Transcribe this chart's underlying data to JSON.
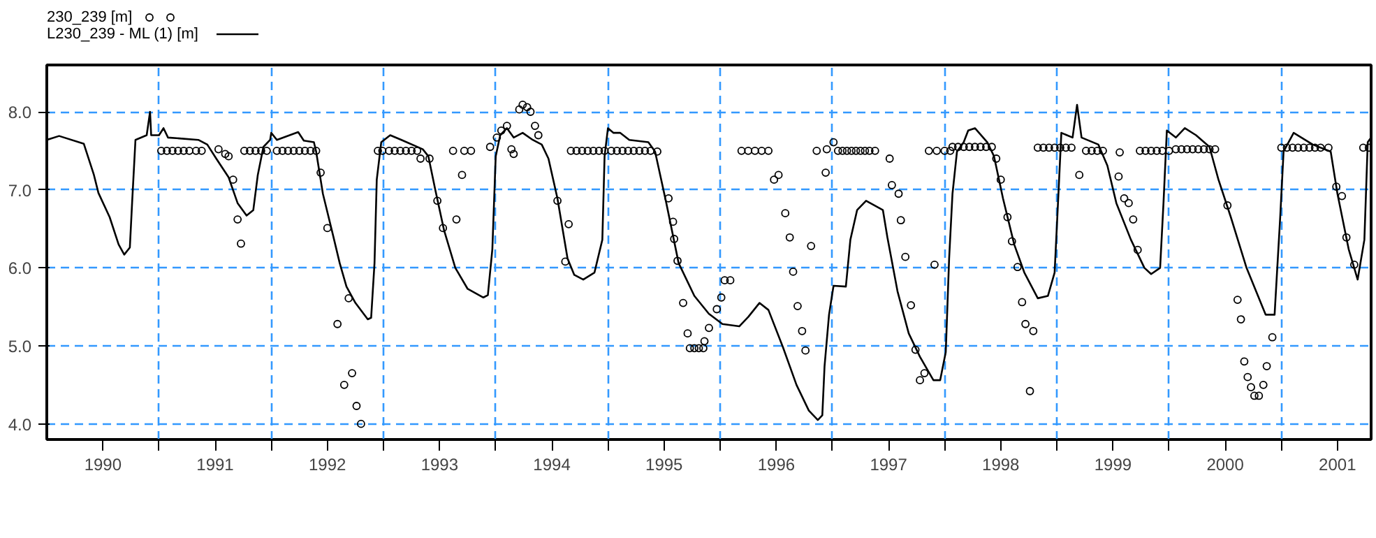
{
  "chart_data": {
    "type": "line",
    "xlim": [
      1990,
      2001.8
    ],
    "ylim": [
      3.8,
      8.6
    ],
    "xticks": [
      {
        "value": 1991,
        "label": null
      },
      {
        "value": 1992,
        "label": null
      },
      {
        "value": 1993,
        "label": null
      },
      {
        "value": 1994,
        "label": null
      },
      {
        "value": 1995,
        "label": null
      },
      {
        "value": 1996,
        "label": null
      },
      {
        "value": 1997,
        "label": null
      },
      {
        "value": 1998,
        "label": null
      },
      {
        "value": 1999,
        "label": null
      },
      {
        "value": 2000,
        "label": null
      },
      {
        "value": 2001,
        "label": null
      },
      {
        "value": 1990.5,
        "label": "1990"
      },
      {
        "value": 1991.5,
        "label": "1991"
      },
      {
        "value": 1992.5,
        "label": "1992"
      },
      {
        "value": 1993.5,
        "label": "1993"
      },
      {
        "value": 1994.5,
        "label": "1994"
      },
      {
        "value": 1995.5,
        "label": "1995"
      },
      {
        "value": 1996.5,
        "label": "1996"
      },
      {
        "value": 1997.5,
        "label": "1997"
      },
      {
        "value": 1998.5,
        "label": "1998"
      },
      {
        "value": 1999.5,
        "label": "1999"
      },
      {
        "value": 2000.5,
        "label": "2000"
      },
      {
        "value": 2001.5,
        "label": "2001"
      }
    ],
    "yticks": [
      {
        "value": 4,
        "label": "4.0"
      },
      {
        "value": 5,
        "label": "5.0"
      },
      {
        "value": 6,
        "label": "6.0"
      },
      {
        "value": 7,
        "label": "7.0"
      },
      {
        "value": 8,
        "label": "8.0"
      }
    ],
    "grid": true,
    "legend": "top left",
    "series": [
      {
        "name": "230_239 [m]",
        "type": "scatter",
        "marker": "circle",
        "color": "#000000",
        "x": [
          1991.02,
          1991.07,
          1991.12,
          1991.17,
          1991.22,
          1991.27,
          1991.33,
          1991.38,
          1991.53,
          1991.59,
          1991.62,
          1991.66,
          1991.7,
          1991.73,
          1991.76,
          1991.81,
          1991.86,
          1991.91,
          1991.96,
          1992.05,
          1992.1,
          1992.15,
          1992.2,
          1992.25,
          1992.3,
          1992.35,
          1992.4,
          1992.44,
          1992.5,
          1992.59,
          1992.65,
          1992.69,
          1992.72,
          1992.76,
          1992.8,
          1992.95,
          1992.99,
          1993.05,
          1993.1,
          1993.15,
          1993.2,
          1993.25,
          1993.3,
          1993.33,
          1993.41,
          1993.48,
          1993.53,
          1993.62,
          1993.65,
          1993.7,
          1993.72,
          1993.78,
          1993.95,
          1994.01,
          1994.05,
          1994.1,
          1994.14,
          1994.16,
          1994.21,
          1994.24,
          1994.28,
          1994.31,
          1994.35,
          1994.38,
          1994.55,
          1994.62,
          1994.65,
          1994.67,
          1994.72,
          1994.77,
          1994.82,
          1994.87,
          1994.92,
          1994.97,
          1995.03,
          1995.08,
          1995.13,
          1995.18,
          1995.23,
          1995.28,
          1995.33,
          1995.38,
          1995.44,
          1995.54,
          1995.58,
          1995.59,
          1995.62,
          1995.67,
          1995.71,
          1995.73,
          1995.77,
          1995.81,
          1995.85,
          1995.86,
          1995.9,
          1995.97,
          1996.01,
          1996.04,
          1996.09,
          1996.19,
          1996.25,
          1996.31,
          1996.37,
          1996.43,
          1996.48,
          1996.52,
          1996.58,
          1996.62,
          1996.65,
          1996.69,
          1996.73,
          1996.76,
          1996.81,
          1996.86,
          1996.94,
          1996.95,
          1997.01,
          1997.05,
          1997.09,
          1997.13,
          1997.17,
          1997.21,
          1997.25,
          1997.29,
          1997.33,
          1997.38,
          1997.51,
          1997.53,
          1997.59,
          1997.61,
          1997.65,
          1997.7,
          1997.74,
          1997.78,
          1997.82,
          1997.86,
          1997.91,
          1997.93,
          1998.0,
          1998.05,
          1998.07,
          1998.12,
          1998.17,
          1998.22,
          1998.27,
          1998.32,
          1998.37,
          1998.42,
          1998.46,
          1998.5,
          1998.56,
          1998.6,
          1998.65,
          1998.69,
          1998.72,
          1998.76,
          1998.79,
          1998.83,
          1998.88,
          1998.93,
          1998.98,
          1999.03,
          1999.08,
          1999.13,
          1999.2,
          1999.26,
          1999.31,
          1999.36,
          1999.41,
          1999.55,
          1999.56,
          1999.6,
          1999.64,
          1999.68,
          1999.72,
          1999.74,
          1999.79,
          1999.84,
          1999.89,
          1999.94,
          2000.0,
          2000.06,
          2000.11,
          2000.16,
          2000.21,
          2000.26,
          2000.31,
          2000.36,
          2000.41,
          2000.52,
          2000.61,
          2000.64,
          2000.67,
          2000.7,
          2000.73,
          2000.76,
          2000.8,
          2000.84,
          2000.87,
          2000.92,
          2001.0,
          2001.05,
          2001.1,
          2001.15,
          2001.2,
          2001.25,
          2001.3,
          2001.35,
          2001.42,
          2001.49,
          2001.54,
          2001.58,
          2001.65,
          2001.73,
          2001.78
        ],
        "values": [
          7.5,
          7.5,
          7.5,
          7.5,
          7.5,
          7.5,
          7.5,
          7.5,
          7.52,
          7.46,
          7.43,
          7.13,
          6.62,
          6.31,
          7.5,
          7.5,
          7.5,
          7.5,
          7.5,
          7.5,
          7.5,
          7.5,
          7.5,
          7.5,
          7.5,
          7.5,
          7.5,
          7.22,
          6.51,
          5.28,
          4.5,
          5.61,
          4.65,
          4.23,
          4.0,
          7.5,
          7.5,
          7.5,
          7.5,
          7.5,
          7.5,
          7.5,
          7.5,
          7.4,
          7.4,
          6.86,
          6.51,
          7.5,
          6.62,
          7.19,
          7.5,
          7.5,
          7.55,
          7.67,
          7.76,
          7.82,
          7.52,
          7.46,
          8.03,
          8.09,
          8.06,
          8.0,
          7.82,
          7.7,
          6.86,
          6.08,
          6.56,
          7.5,
          7.5,
          7.5,
          7.5,
          7.5,
          7.5,
          7.5,
          7.5,
          7.5,
          7.5,
          7.5,
          7.5,
          7.5,
          7.5,
          7.5,
          7.49,
          6.89,
          6.59,
          6.37,
          6.09,
          5.55,
          5.16,
          4.97,
          4.97,
          4.97,
          4.97,
          5.06,
          5.23,
          5.47,
          5.62,
          5.84,
          5.84,
          7.5,
          7.5,
          7.5,
          7.5,
          7.5,
          7.13,
          7.19,
          6.7,
          6.39,
          5.95,
          5.51,
          5.19,
          4.94,
          6.28,
          7.5,
          7.22,
          7.52,
          7.61,
          7.5,
          7.5,
          7.5,
          7.5,
          7.5,
          7.5,
          7.5,
          7.5,
          7.5,
          7.4,
          7.06,
          6.95,
          6.61,
          6.14,
          5.52,
          4.95,
          4.56,
          4.65,
          7.5,
          6.04,
          7.5,
          7.5,
          7.5,
          7.55,
          7.55,
          7.55,
          7.55,
          7.55,
          7.55,
          7.55,
          7.55,
          7.4,
          7.13,
          6.65,
          6.34,
          6.01,
          5.56,
          5.28,
          4.42,
          5.19,
          7.54,
          7.54,
          7.54,
          7.54,
          7.54,
          7.54,
          7.54,
          7.19,
          7.5,
          7.5,
          7.5,
          7.5,
          7.17,
          7.48,
          6.89,
          6.83,
          6.62,
          6.23,
          7.5,
          7.5,
          7.5,
          7.5,
          7.5,
          7.5,
          7.52,
          7.52,
          7.52,
          7.52,
          7.52,
          7.52,
          7.52,
          7.52,
          6.8,
          5.59,
          5.34,
          4.8,
          4.6,
          4.47,
          4.36,
          4.36,
          4.5,
          4.74,
          5.11,
          7.54,
          7.54,
          7.54,
          7.54,
          7.54,
          7.54,
          7.54,
          7.54,
          7.54,
          7.04,
          6.92,
          6.39,
          6.04,
          7.54,
          7.54
        ]
      },
      {
        "name": "L230_239 - ML (1) [m]",
        "type": "line",
        "line_style": "solid",
        "color": "#000000",
        "x": [
          1990.0,
          1990.11,
          1990.33,
          1990.42,
          1990.46,
          1990.56,
          1990.64,
          1990.69,
          1990.74,
          1990.76,
          1990.79,
          1990.89,
          1990.92,
          1990.93,
          1991.0,
          1991.04,
          1991.08,
          1991.35,
          1991.43,
          1991.51,
          1991.62,
          1991.7,
          1991.78,
          1991.84,
          1991.88,
          1991.93,
          1991.99,
          1992.0,
          1992.05,
          1992.24,
          1992.29,
          1992.38,
          1992.4,
          1992.46,
          1992.55,
          1992.61,
          1992.67,
          1992.75,
          1992.86,
          1992.89,
          1992.92,
          1992.94,
          1992.98,
          1993.06,
          1993.16,
          1993.35,
          1993.4,
          1993.46,
          1993.54,
          1993.64,
          1993.75,
          1993.89,
          1993.93,
          1993.97,
          1994.0,
          1994.04,
          1994.1,
          1994.16,
          1994.24,
          1994.33,
          1994.41,
          1994.47,
          1994.55,
          1994.64,
          1994.7,
          1994.78,
          1994.88,
          1994.95,
          1994.97,
          1995.0,
          1995.05,
          1995.11,
          1995.19,
          1995.36,
          1995.42,
          1995.52,
          1995.63,
          1995.77,
          1995.9,
          1996.02,
          1996.17,
          1996.25,
          1996.35,
          1996.43,
          1996.56,
          1996.68,
          1996.79,
          1996.87,
          1996.91,
          1996.93,
          1996.97,
          1997.01,
          1997.12,
          1997.16,
          1997.22,
          1997.3,
          1997.45,
          1997.49,
          1997.58,
          1997.68,
          1997.78,
          1997.9,
          1997.96,
          1998.01,
          1998.04,
          1998.07,
          1998.11,
          1998.17,
          1998.21,
          1998.27,
          1998.38,
          1998.44,
          1998.52,
          1998.62,
          1998.71,
          1998.83,
          1998.92,
          1998.98,
          1999.01,
          1999.04,
          1999.14,
          1999.18,
          1999.22,
          1999.37,
          1999.45,
          1999.53,
          1999.66,
          1999.78,
          1999.84,
          1999.92,
          1999.95,
          1999.98,
          2000.06,
          2000.14,
          2000.24,
          2000.36,
          2000.44,
          2000.55,
          2000.69,
          2000.86,
          2000.94,
          2000.99,
          2001.02,
          2001.11,
          2001.28,
          2001.44,
          2001.5,
          2001.6,
          2001.68,
          2001.74,
          2001.77,
          2001.8
        ],
        "values": [
          7.64,
          7.69,
          7.59,
          7.19,
          6.96,
          6.65,
          6.3,
          6.17,
          6.26,
          6.83,
          7.64,
          7.7,
          8.0,
          7.7,
          7.7,
          7.79,
          7.67,
          7.64,
          7.58,
          7.4,
          7.16,
          6.83,
          6.67,
          6.74,
          7.19,
          7.55,
          7.64,
          7.73,
          7.64,
          7.74,
          7.63,
          7.61,
          7.49,
          6.95,
          6.42,
          6.06,
          5.76,
          5.55,
          5.34,
          5.36,
          6.06,
          7.13,
          7.61,
          7.7,
          7.64,
          7.52,
          7.43,
          7.01,
          6.48,
          6.0,
          5.73,
          5.62,
          5.65,
          6.24,
          7.43,
          7.7,
          7.79,
          7.67,
          7.73,
          7.64,
          7.58,
          7.4,
          6.89,
          6.12,
          5.91,
          5.85,
          5.94,
          6.36,
          7.43,
          7.79,
          7.73,
          7.73,
          7.64,
          7.61,
          7.49,
          6.83,
          6.06,
          5.64,
          5.41,
          5.28,
          5.25,
          5.37,
          5.55,
          5.46,
          4.98,
          4.5,
          4.17,
          4.05,
          4.11,
          4.74,
          5.4,
          5.77,
          5.76,
          6.36,
          6.74,
          6.86,
          6.74,
          6.39,
          5.7,
          5.16,
          4.86,
          4.56,
          4.56,
          4.92,
          6.12,
          6.95,
          7.49,
          7.61,
          7.76,
          7.79,
          7.61,
          7.43,
          6.89,
          6.3,
          5.94,
          5.61,
          5.64,
          5.94,
          6.83,
          7.73,
          7.67,
          8.09,
          7.67,
          7.58,
          7.31,
          6.83,
          6.36,
          6.0,
          5.92,
          6.0,
          6.83,
          7.76,
          7.67,
          7.79,
          7.7,
          7.55,
          7.13,
          6.65,
          6.0,
          5.4,
          5.4,
          6.65,
          7.49,
          7.73,
          7.58,
          7.49,
          6.95,
          6.24,
          5.85,
          6.36,
          7.61,
          7.67
        ]
      }
    ]
  }
}
